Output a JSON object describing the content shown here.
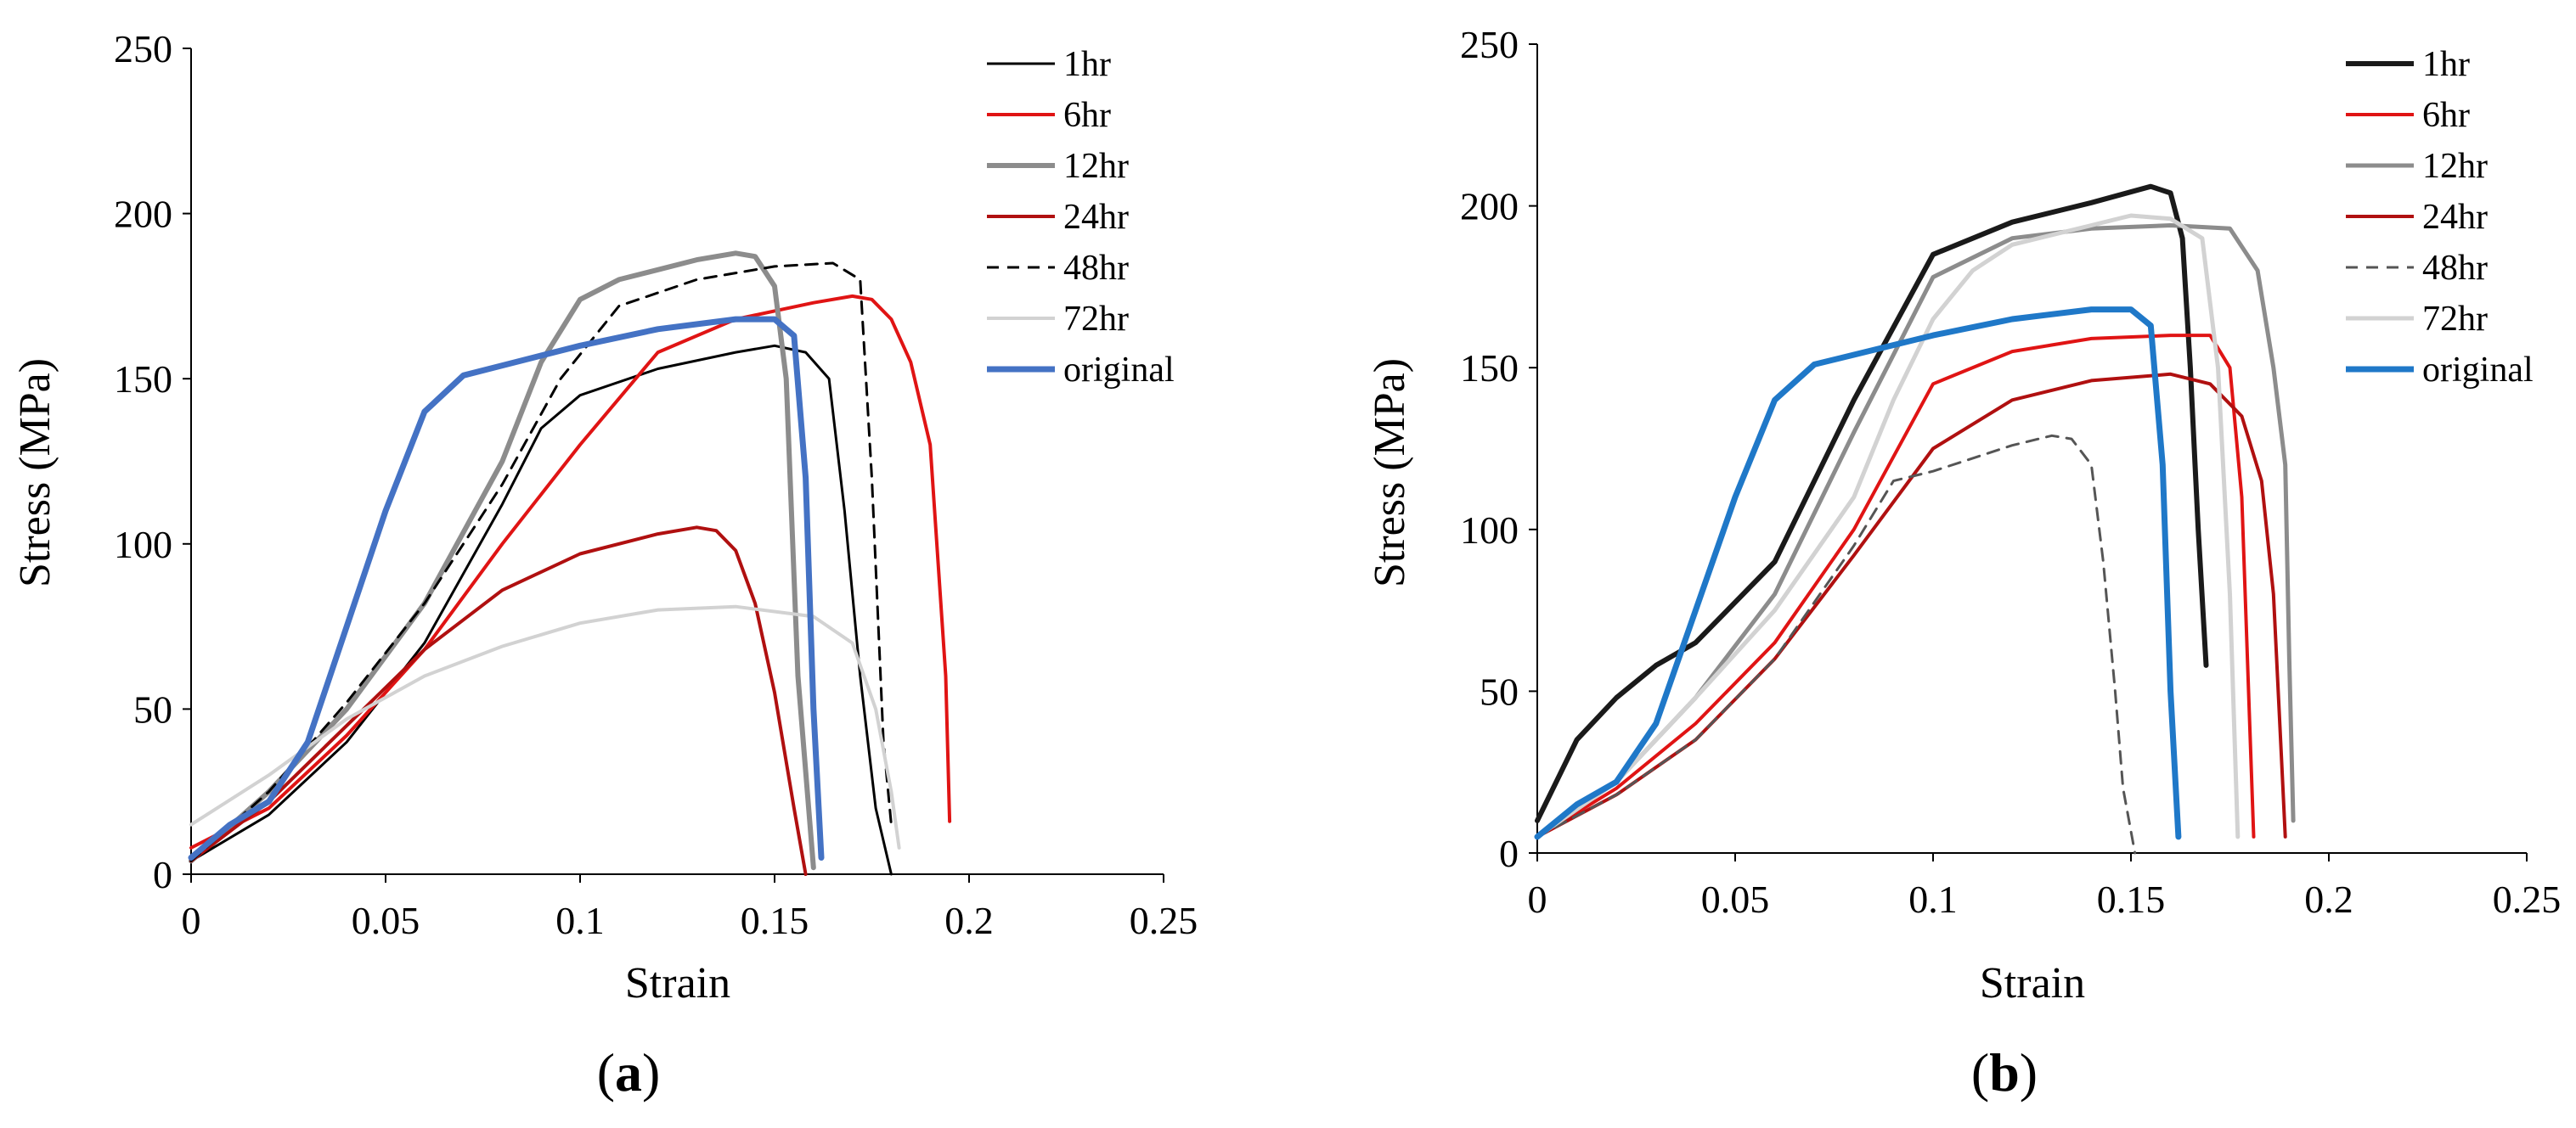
{
  "chart_data": [
    {
      "type": "line",
      "panel": "a",
      "caption": "a",
      "xlabel": "Strain",
      "ylabel": "Stress (MPa)",
      "xlim": [
        0,
        0.25
      ],
      "ylim": [
        0,
        250
      ],
      "xticks": [
        "0",
        "0.05",
        "0.1",
        "0.15",
        "0.2",
        "0.25"
      ],
      "yticks": [
        "0",
        "50",
        "100",
        "150",
        "200",
        "250"
      ],
      "grid": false,
      "legend_position": "top-right",
      "series": [
        {
          "name": "1hr",
          "color": "#000000",
          "width": 3,
          "dash": "",
          "x": [
            0,
            0.02,
            0.04,
            0.06,
            0.08,
            0.09,
            0.1,
            0.12,
            0.14,
            0.15,
            0.158,
            0.164,
            0.168,
            0.172,
            0.176,
            0.18
          ],
          "y": [
            4,
            18,
            40,
            70,
            112,
            135,
            145,
            153,
            158,
            160,
            158,
            150,
            110,
            60,
            20,
            0
          ]
        },
        {
          "name": "6hr",
          "color": "#e01414",
          "width": 4,
          "dash": "",
          "x": [
            0,
            0.02,
            0.04,
            0.06,
            0.08,
            0.1,
            0.12,
            0.14,
            0.16,
            0.17,
            0.175,
            0.18,
            0.185,
            0.19,
            0.194,
            0.195
          ],
          "y": [
            8,
            20,
            42,
            68,
            100,
            130,
            158,
            168,
            173,
            175,
            174,
            168,
            155,
            130,
            60,
            16
          ]
        },
        {
          "name": "12hr",
          "color": "#8c8c8c",
          "width": 6,
          "dash": "",
          "x": [
            0,
            0.02,
            0.04,
            0.06,
            0.08,
            0.09,
            0.1,
            0.11,
            0.12,
            0.13,
            0.14,
            0.145,
            0.15,
            0.153,
            0.156,
            0.16
          ],
          "y": [
            4,
            25,
            50,
            82,
            125,
            155,
            174,
            180,
            183,
            186,
            188,
            187,
            178,
            150,
            60,
            2
          ]
        },
        {
          "name": "24hr",
          "color": "#b01010",
          "width": 4,
          "dash": "",
          "x": [
            0,
            0.02,
            0.04,
            0.06,
            0.08,
            0.1,
            0.12,
            0.13,
            0.135,
            0.14,
            0.145,
            0.15,
            0.155,
            0.158
          ],
          "y": [
            4,
            22,
            45,
            68,
            86,
            97,
            103,
            105,
            104,
            98,
            82,
            55,
            20,
            0
          ]
        },
        {
          "name": "48hr",
          "color": "#000000",
          "width": 3,
          "dash": "14,10",
          "x": [
            0,
            0.02,
            0.04,
            0.06,
            0.08,
            0.095,
            0.11,
            0.13,
            0.15,
            0.165,
            0.172,
            0.175,
            0.178,
            0.18
          ],
          "y": [
            4,
            25,
            52,
            82,
            118,
            150,
            172,
            180,
            184,
            185,
            180,
            120,
            40,
            15
          ]
        },
        {
          "name": "72hr",
          "color": "#d2d2d2",
          "width": 4,
          "dash": "",
          "x": [
            0,
            0.02,
            0.04,
            0.06,
            0.08,
            0.1,
            0.12,
            0.14,
            0.16,
            0.17,
            0.176,
            0.18,
            0.182
          ],
          "y": [
            15,
            30,
            47,
            60,
            69,
            76,
            80,
            81,
            78,
            70,
            50,
            25,
            8
          ]
        },
        {
          "name": "original",
          "color": "#4472c4",
          "width": 7,
          "dash": "",
          "x": [
            0,
            0.01,
            0.02,
            0.03,
            0.04,
            0.05,
            0.06,
            0.07,
            0.08,
            0.1,
            0.12,
            0.14,
            0.15,
            0.155,
            0.158,
            0.16,
            0.162
          ],
          "y": [
            5,
            15,
            22,
            40,
            75,
            110,
            140,
            151,
            154,
            160,
            165,
            168,
            168,
            163,
            120,
            50,
            5
          ]
        }
      ]
    },
    {
      "type": "line",
      "panel": "b",
      "caption": "b",
      "xlabel": "Strain",
      "ylabel": "Stress (MPa)",
      "xlim": [
        0,
        0.25
      ],
      "ylim": [
        0,
        250
      ],
      "xticks": [
        "0",
        "0.05",
        "0.1",
        "0.15",
        "0.2",
        "0.25"
      ],
      "yticks": [
        "0",
        "50",
        "100",
        "150",
        "200",
        "250"
      ],
      "grid": false,
      "legend_position": "top-right",
      "series": [
        {
          "name": "1hr",
          "color": "#1a1a1a",
          "width": 6,
          "dash": "",
          "x": [
            0,
            0.01,
            0.02,
            0.03,
            0.04,
            0.06,
            0.08,
            0.1,
            0.12,
            0.14,
            0.155,
            0.16,
            0.163,
            0.165,
            0.167,
            0.169
          ],
          "y": [
            10,
            35,
            48,
            58,
            65,
            90,
            140,
            185,
            195,
            201,
            206,
            204,
            190,
            150,
            100,
            58
          ]
        },
        {
          "name": "6hr",
          "color": "#e01414",
          "width": 4,
          "dash": "",
          "x": [
            0,
            0.02,
            0.04,
            0.06,
            0.08,
            0.1,
            0.12,
            0.14,
            0.16,
            0.17,
            0.175,
            0.178,
            0.18,
            0.181
          ],
          "y": [
            5,
            20,
            40,
            65,
            100,
            145,
            155,
            159,
            160,
            160,
            150,
            110,
            40,
            5
          ]
        },
        {
          "name": "12hr",
          "color": "#8c8c8c",
          "width": 5,
          "dash": "",
          "x": [
            0,
            0.02,
            0.04,
            0.06,
            0.08,
            0.1,
            0.12,
            0.14,
            0.16,
            0.175,
            0.182,
            0.186,
            0.189,
            0.19,
            0.191
          ],
          "y": [
            5,
            22,
            48,
            80,
            130,
            178,
            190,
            193,
            194,
            193,
            180,
            150,
            120,
            60,
            10
          ]
        },
        {
          "name": "24hr",
          "color": "#b01010",
          "width": 4,
          "dash": "",
          "x": [
            0,
            0.02,
            0.04,
            0.06,
            0.08,
            0.1,
            0.12,
            0.14,
            0.16,
            0.17,
            0.178,
            0.183,
            0.186,
            0.188,
            0.189
          ],
          "y": [
            5,
            18,
            35,
            60,
            92,
            125,
            140,
            146,
            148,
            145,
            135,
            115,
            80,
            30,
            5
          ]
        },
        {
          "name": "48hr",
          "color": "#555555",
          "width": 3,
          "dash": "14,10",
          "x": [
            0,
            0.02,
            0.04,
            0.06,
            0.08,
            0.09,
            0.1,
            0.12,
            0.13,
            0.135,
            0.14,
            0.143,
            0.146,
            0.148,
            0.151
          ],
          "y": [
            5,
            18,
            35,
            60,
            95,
            115,
            118,
            126,
            129,
            128,
            120,
            90,
            50,
            20,
            0
          ]
        },
        {
          "name": "72hr",
          "color": "#d2d2d2",
          "width": 5,
          "dash": "",
          "x": [
            0,
            0.02,
            0.04,
            0.06,
            0.08,
            0.09,
            0.1,
            0.11,
            0.12,
            0.14,
            0.15,
            0.16,
            0.168,
            0.172,
            0.175,
            0.177
          ],
          "y": [
            5,
            22,
            48,
            75,
            110,
            140,
            165,
            180,
            188,
            194,
            197,
            196,
            190,
            150,
            80,
            5
          ]
        },
        {
          "name": "original",
          "color": "#1f78c8",
          "width": 7,
          "dash": "",
          "x": [
            0,
            0.01,
            0.02,
            0.03,
            0.04,
            0.05,
            0.06,
            0.07,
            0.08,
            0.1,
            0.12,
            0.14,
            0.15,
            0.155,
            0.158,
            0.16,
            0.162
          ],
          "y": [
            5,
            15,
            22,
            40,
            75,
            110,
            140,
            151,
            154,
            160,
            165,
            168,
            168,
            163,
            120,
            50,
            5
          ]
        }
      ]
    }
  ]
}
